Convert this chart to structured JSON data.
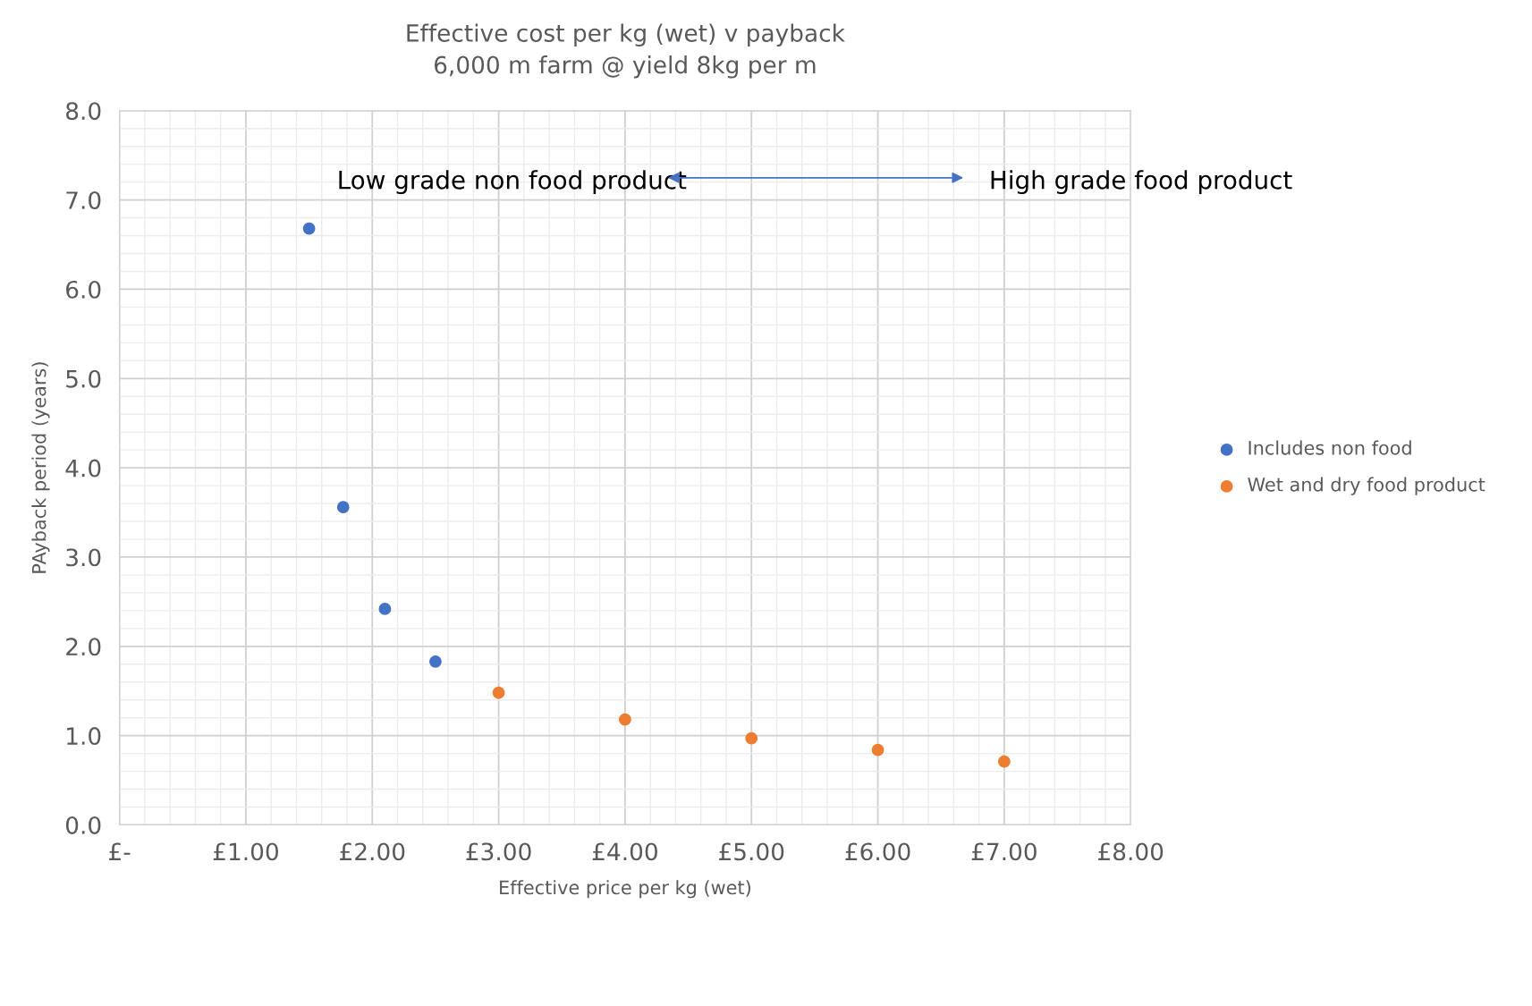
{
  "chart_data": {
    "type": "scatter",
    "title": "Effective cost per kg (wet) v payback\n6,000 m farm @ yield 8kg per m",
    "xlabel": "Effective price per kg (wet)",
    "ylabel": "PAyback period (years)",
    "series": [
      {
        "name": "Includes non food",
        "color": "#4472c4",
        "x": [
          1.5,
          1.77,
          2.1,
          2.5
        ],
        "values": [
          6.68,
          3.56,
          2.42,
          1.83
        ]
      },
      {
        "name": "Wet and dry food product",
        "color": "#ed7d31",
        "x": [
          3,
          4,
          5,
          6,
          7
        ],
        "values": [
          1.48,
          1.18,
          0.97,
          0.84,
          0.71
        ]
      }
    ],
    "xlim": [
      0,
      8
    ],
    "xticks": [
      {
        "value": 0,
        "label": "£-"
      },
      {
        "value": 1,
        "label": "£1.00"
      },
      {
        "value": 2,
        "label": "£2.00"
      },
      {
        "value": 3,
        "label": "£3.00"
      },
      {
        "value": 4,
        "label": "£4.00"
      },
      {
        "value": 5,
        "label": "£5.00"
      },
      {
        "value": 6,
        "label": "£6.00"
      },
      {
        "value": 7,
        "label": "£7.00"
      },
      {
        "value": 8,
        "label": "£8.00"
      }
    ],
    "ylim": [
      0,
      8
    ],
    "yticks": [
      {
        "value": 0,
        "label": "0.0"
      },
      {
        "value": 1,
        "label": "1.0"
      },
      {
        "value": 2,
        "label": "2.0"
      },
      {
        "value": 3,
        "label": "3.0"
      },
      {
        "value": 4,
        "label": "4.0"
      },
      {
        "value": 5,
        "label": "5.0"
      },
      {
        "value": 6,
        "label": "6.0"
      },
      {
        "value": 7,
        "label": "7.0"
      },
      {
        "value": 8,
        "label": "8.0"
      }
    ],
    "annotations": [
      "Low grade non food product",
      "High grade food product"
    ],
    "grid": true,
    "legend": "right",
    "marker": "circle"
  }
}
